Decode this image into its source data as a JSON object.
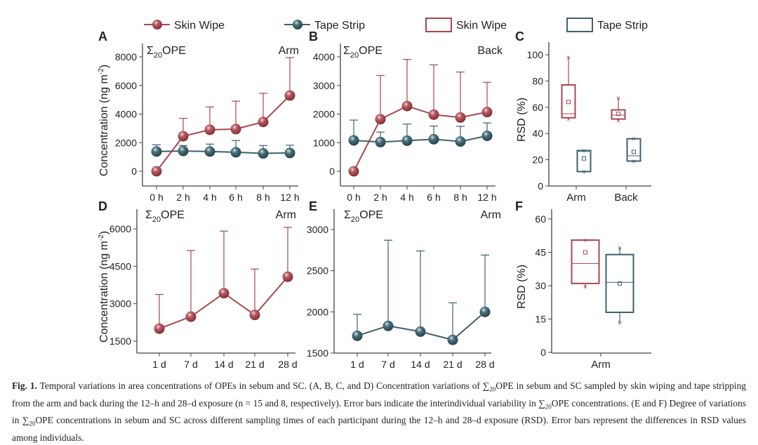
{
  "legend": {
    "line_skin": "Skin Wipe",
    "line_tape": "Tape Strip",
    "box_skin": "Skin Wipe",
    "box_tape": "Tape Strip"
  },
  "colors": {
    "skin": "#a8474f",
    "tape": "#3e616c"
  },
  "chart_data": [
    {
      "id": "A",
      "type": "line",
      "letter": "A",
      "title_main": "Σ",
      "title_sub": "20",
      "title_rest": "OPE",
      "site": "Arm",
      "ylabel": "Concentration (ng m",
      "ylabel_sup": "-2",
      "ylabel_end": ")",
      "categories": [
        "0 h",
        "2 h",
        "4 h",
        "6 h",
        "8 h",
        "12 h"
      ],
      "yticks": [
        "0",
        "2000",
        "4000",
        "6000",
        "8000"
      ],
      "ytick_values": [
        0,
        2000,
        4000,
        6000,
        8000
      ],
      "ylim": [
        -1000,
        9000
      ],
      "series": [
        {
          "name": "Skin Wipe",
          "color_key": "skin",
          "values": [
            0,
            2450,
            2900,
            2950,
            3450,
            5300
          ],
          "err_upper": [
            null,
            3700,
            4500,
            4900,
            5450,
            7950
          ]
        },
        {
          "name": "Tape Strip",
          "color_key": "tape",
          "values": [
            1380,
            1420,
            1380,
            1330,
            1250,
            1280
          ],
          "err_upper": [
            1850,
            1800,
            1900,
            2150,
            1800,
            1820
          ]
        }
      ]
    },
    {
      "id": "B",
      "type": "line",
      "letter": "B",
      "title_main": "Σ",
      "title_sub": "20",
      "title_rest": "OPE",
      "site": "Back",
      "categories": [
        "0 h",
        "2 h",
        "4 h",
        "6 h",
        "8 h",
        "12 h"
      ],
      "yticks": [
        "0",
        "1000",
        "2000",
        "3000",
        "4000"
      ],
      "ytick_values": [
        0,
        1000,
        2000,
        3000,
        4000
      ],
      "ylim": [
        -500,
        4500
      ],
      "series": [
        {
          "name": "Skin Wipe",
          "color_key": "skin",
          "values": [
            0,
            1820,
            2280,
            1980,
            1880,
            2070
          ],
          "err_upper": [
            null,
            3350,
            3910,
            3720,
            3470,
            3110
          ]
        },
        {
          "name": "Tape Strip",
          "color_key": "tape",
          "values": [
            1080,
            1020,
            1070,
            1120,
            1040,
            1240
          ],
          "err_upper": [
            1790,
            1370,
            1650,
            1580,
            1570,
            1690
          ]
        }
      ]
    },
    {
      "id": "C",
      "type": "box",
      "letter": "C",
      "ylabel": "RSD (%)",
      "categories": [
        "Arm",
        "Back"
      ],
      "yticks": [
        "0",
        "20",
        "40",
        "60",
        "80",
        "100"
      ],
      "ytick_values": [
        0,
        20,
        40,
        60,
        80,
        100
      ],
      "ylim": [
        0,
        110
      ],
      "boxes": [
        {
          "category": "Arm",
          "series": "Skin Wipe",
          "color_key": "skin",
          "min": 51,
          "q1": 52,
          "median": 55,
          "q3": 77,
          "max": 98,
          "mean": 64
        },
        {
          "category": "Arm",
          "series": "Tape Strip",
          "color_key": "tape",
          "min": 11,
          "q1": 11,
          "median": 26.5,
          "q3": 27,
          "max": 27,
          "mean": 21
        },
        {
          "category": "Back",
          "series": "Skin Wipe",
          "color_key": "skin",
          "min": 50,
          "q1": 51,
          "median": 54,
          "q3": 58,
          "max": 67,
          "mean": 55
        },
        {
          "category": "Back",
          "series": "Tape Strip",
          "color_key": "tape",
          "min": 19,
          "q1": 19,
          "median": 23,
          "q3": 36,
          "max": 36,
          "mean": 26
        }
      ]
    },
    {
      "id": "D",
      "type": "line",
      "letter": "D",
      "title_main": "Σ",
      "title_sub": "20",
      "title_rest": "OPE",
      "site": "Arm",
      "ylabel": "Concentration (ng m",
      "ylabel_sup": "-2",
      "ylabel_end": ")",
      "categories": [
        "1 d",
        "7 d",
        "14 d",
        "21 d",
        "28 d"
      ],
      "yticks": [
        "1500",
        "3000",
        "4500",
        "6000"
      ],
      "ytick_values": [
        1500,
        3000,
        4500,
        6000
      ],
      "ylim": [
        1000,
        6800
      ],
      "series": [
        {
          "name": "Skin Wipe",
          "color_key": "skin",
          "values": [
            2000,
            2480,
            3420,
            2550,
            4080
          ],
          "err_upper": [
            3370,
            5130,
            5910,
            4390,
            6060
          ]
        }
      ]
    },
    {
      "id": "E",
      "type": "line",
      "letter": "E",
      "title_main": "Σ",
      "title_sub": "20",
      "title_rest": "OPE",
      "site": "Arm",
      "categories": [
        "1 d",
        "7 d",
        "14 d",
        "21 d",
        "28 d"
      ],
      "yticks": [
        "1500",
        "2000",
        "2500",
        "3000"
      ],
      "ytick_values": [
        1500,
        2000,
        2500,
        3000
      ],
      "ylim": [
        1500,
        3250
      ],
      "series": [
        {
          "name": "Tape Strip",
          "color_key": "tape",
          "values": [
            1710,
            1830,
            1760,
            1660,
            2000
          ],
          "err_upper": [
            1970,
            2870,
            2740,
            2110,
            2690
          ]
        }
      ]
    },
    {
      "id": "F",
      "type": "box",
      "letter": "F",
      "ylabel": "RSD (%)",
      "categories": [
        "Arm"
      ],
      "yticks": [
        "0",
        "15",
        "30",
        "45",
        "60"
      ],
      "ytick_values": [
        0,
        15,
        30,
        45,
        60
      ],
      "ylim": [
        0,
        66
      ],
      "boxes": [
        {
          "category": "Arm",
          "series": "Skin Wipe",
          "color_key": "skin",
          "min": 29.5,
          "q1": 31,
          "median": 40,
          "q3": 50.5,
          "max": 50.5,
          "mean": 45
        },
        {
          "category": "Arm",
          "series": "Tape Strip",
          "color_key": "tape",
          "min": 13.5,
          "q1": 18,
          "median": 31.5,
          "q3": 44,
          "max": 47,
          "mean": 31
        }
      ]
    }
  ],
  "caption": {
    "label": "Fig. 1.",
    "p1": " Temporal variations in area concentrations of OPEs in sebum and SC. (A, B, C, and D) Concentration variations of ∑",
    "s1": "20",
    "p2": "OPE in sebum and SC sampled by skin wiping and tape stripping from the arm and back during the 12–h and 28–d exposure (n = 15 and 8, respectively). Error bars indicate the interindividual variability in ∑",
    "s2": "20",
    "p3": "OPE concentrations. (E and F) Degree of variations in ∑",
    "s3": "20",
    "p4": "OPE concentrations in sebum and SC across different sampling times of each participant during the 12–h and 28–d exposure (RSD). Error bars represent the differences in RSD values among individuals."
  }
}
